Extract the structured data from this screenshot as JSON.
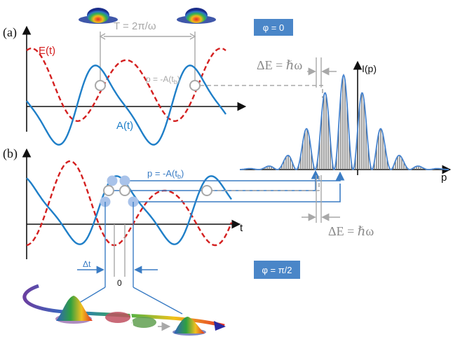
{
  "panel_a": {
    "label": "(a)",
    "e_label": "E(t)",
    "a_label": "A(t)",
    "period_label": "T = 2π/ω",
    "p_label": "p = -A(t",
    "p_sub": "b",
    "p_close": ")"
  },
  "panel_b": {
    "label": "(b)",
    "p_label": "p = -A(t",
    "p_sub": "b",
    "p_close": ")",
    "t_axis": "t",
    "dt_label": "Δt",
    "zero_label": "0"
  },
  "spectrum": {
    "y_label": "I(p)",
    "x_label": "p",
    "de_top": "ΔE = ℏω",
    "de_bottom": "ΔE = ℏω"
  },
  "tags": {
    "phase_a": "φ = 0",
    "phase_b": "φ = π/2"
  },
  "colors": {
    "field": "#d42020",
    "vector_potential": "#1f7fc8",
    "guide": "#a8a8a8",
    "tag_bg": "#4a86c8"
  }
}
